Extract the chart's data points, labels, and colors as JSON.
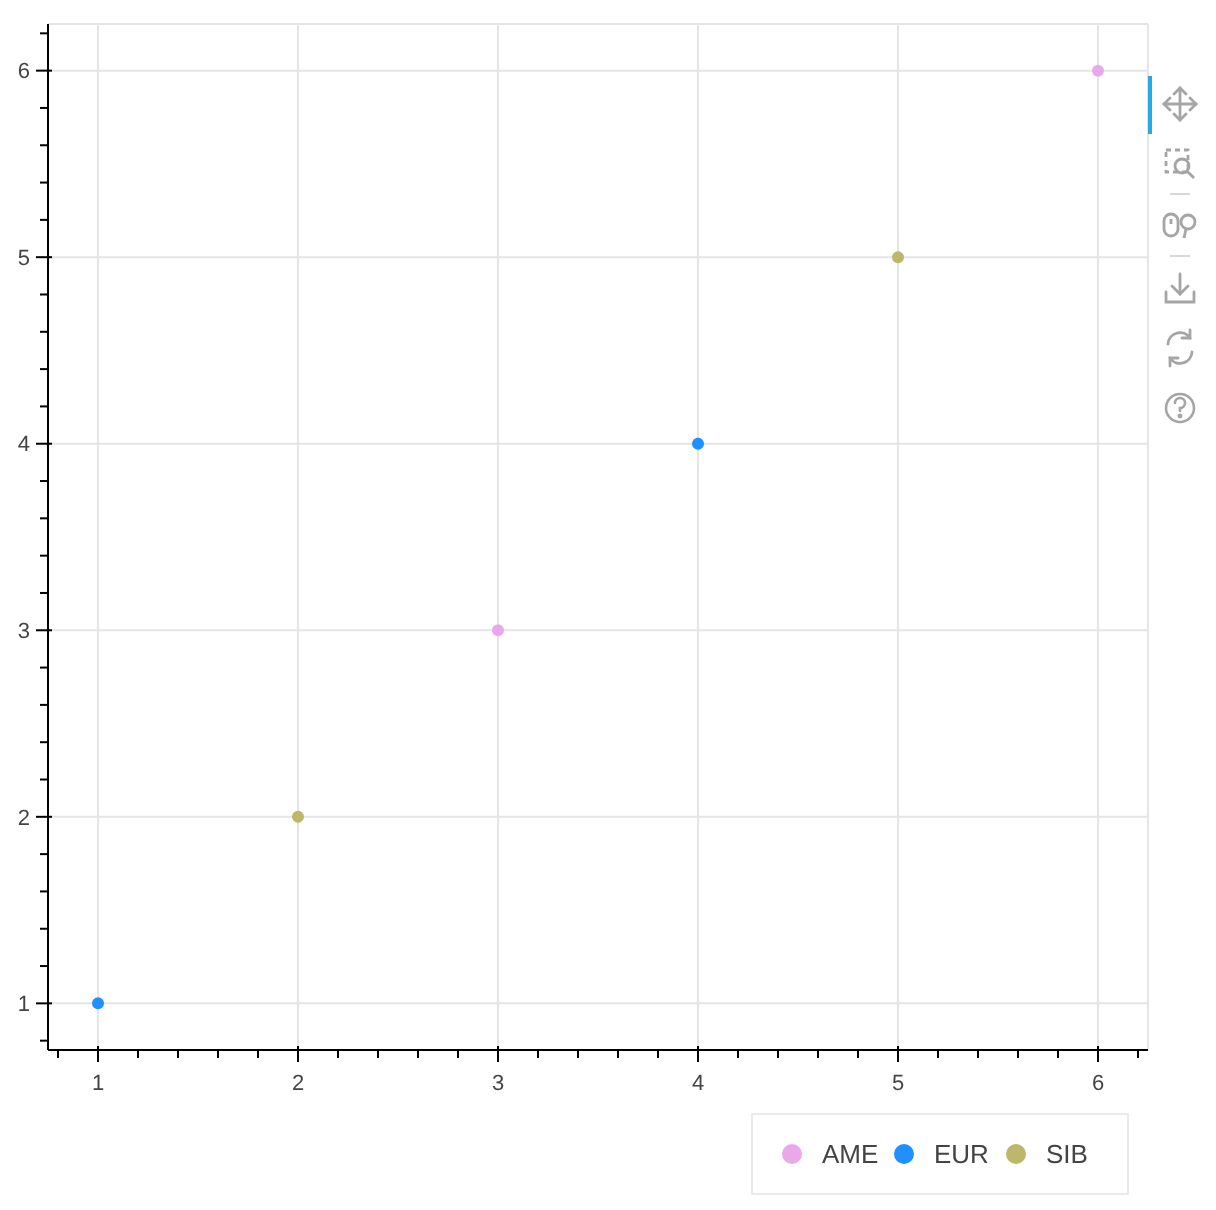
{
  "chart_data": {
    "type": "scatter",
    "series": [
      {
        "name": "AME",
        "color": "#eaa8ea",
        "x": [
          3,
          6
        ],
        "values": [
          3,
          6
        ]
      },
      {
        "name": "EUR",
        "color": "#1e90ff",
        "x": [
          1,
          4
        ],
        "values": [
          1,
          4
        ]
      },
      {
        "name": "SIB",
        "color": "#bdb76b",
        "x": [
          2,
          5
        ],
        "values": [
          2,
          5
        ]
      }
    ],
    "xlim": [
      0.75,
      6.25
    ],
    "ylim": [
      0.75,
      6.25
    ],
    "xticks": [
      {
        "value": 0.8,
        "label": null
      },
      1,
      {
        "value": 1.2,
        "label": null
      },
      {
        "value": 1.4,
        "label": null
      },
      {
        "value": 1.6,
        "label": null
      },
      {
        "value": 1.8,
        "label": null
      },
      2,
      {
        "value": 2.2,
        "label": null
      },
      {
        "value": 2.4,
        "label": null
      },
      {
        "value": 2.6,
        "label": null
      },
      {
        "value": 2.8,
        "label": null
      },
      3,
      {
        "value": 3.2,
        "label": null
      },
      {
        "value": 3.4,
        "label": null
      },
      {
        "value": 3.6,
        "label": null
      },
      {
        "value": 3.8,
        "label": null
      },
      4,
      {
        "value": 4.2,
        "label": null
      },
      {
        "value": 4.4,
        "label": null
      },
      {
        "value": 4.6,
        "label": null
      },
      {
        "value": 4.8,
        "label": null
      },
      5,
      {
        "value": 5.2,
        "label": null
      },
      {
        "value": 5.4,
        "label": null
      },
      {
        "value": 5.6,
        "label": null
      },
      {
        "value": 5.8,
        "label": null
      },
      6,
      {
        "value": 6.2,
        "label": null
      }
    ],
    "yticks": [
      {
        "value": 0.8,
        "label": null
      },
      1,
      {
        "value": 1.2,
        "label": null
      },
      {
        "value": 1.4,
        "label": null
      },
      {
        "value": 1.6,
        "label": null
      },
      {
        "value": 1.8,
        "label": null
      },
      2,
      {
        "value": 2.2,
        "label": null
      },
      {
        "value": 2.4,
        "label": null
      },
      {
        "value": 2.6,
        "label": null
      },
      {
        "value": 2.8,
        "label": null
      },
      3,
      {
        "value": 3.2,
        "label": null
      },
      {
        "value": 3.4,
        "label": null
      },
      {
        "value": 3.6,
        "label": null
      },
      {
        "value": 3.8,
        "label": null
      },
      4,
      {
        "value": 4.2,
        "label": null
      },
      {
        "value": 4.4,
        "label": null
      },
      {
        "value": 4.6,
        "label": null
      },
      {
        "value": 4.8,
        "label": null
      },
      5,
      {
        "value": 5.2,
        "label": null
      },
      {
        "value": 5.4,
        "label": null
      },
      {
        "value": 5.6,
        "label": null
      },
      {
        "value": 5.8,
        "label": null
      },
      6,
      {
        "value": 6.2,
        "label": null
      }
    ],
    "grid": true,
    "legend": "bottom right",
    "marker": "circle"
  }
}
